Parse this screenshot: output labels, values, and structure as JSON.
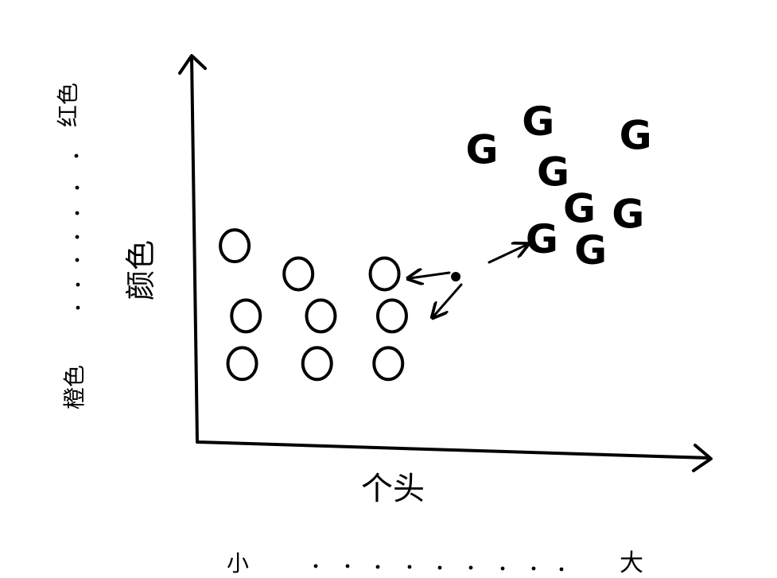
{
  "labels": {
    "y_axis": "颜色",
    "x_axis": "个头",
    "y_top": "红色",
    "y_bottom": "橙色",
    "x_left": "小",
    "x_right": "大"
  },
  "markers": {
    "cluster_o": "O",
    "cluster_g": "G"
  },
  "colors": {
    "ink": "#000000",
    "paper": "#ffffff"
  },
  "chart_data": {
    "type": "scatter",
    "xlabel": "个头",
    "ylabel": "颜色",
    "x_scale": [
      "小",
      "大"
    ],
    "y_scale": [
      "橙色",
      "红色"
    ],
    "series": [
      {
        "name": "O",
        "points": [
          {
            "x": 1,
            "y": 7
          },
          {
            "x": 2.7,
            "y": 6
          },
          {
            "x": 5,
            "y": 6
          },
          {
            "x": 1.3,
            "y": 4.5
          },
          {
            "x": 3.3,
            "y": 4.5
          },
          {
            "x": 5.2,
            "y": 4.5
          },
          {
            "x": 1.2,
            "y": 2.8
          },
          {
            "x": 3.2,
            "y": 2.8
          },
          {
            "x": 5.1,
            "y": 2.8
          }
        ]
      },
      {
        "name": "G",
        "points": [
          {
            "x": 7.6,
            "y": 10.4
          },
          {
            "x": 9.1,
            "y": 11.4
          },
          {
            "x": 11.7,
            "y": 10.9
          },
          {
            "x": 9.5,
            "y": 9.6
          },
          {
            "x": 10.2,
            "y": 8.3
          },
          {
            "x": 11.5,
            "y": 8.1
          },
          {
            "x": 9.2,
            "y": 7.2
          },
          {
            "x": 10.5,
            "y": 6.8
          }
        ]
      },
      {
        "name": "",
        "points": [
          {
            "x": 6.9,
            "y": 5.9
          }
        ]
      }
    ],
    "xlim": [
      0,
      13.5
    ],
    "ylim": [
      0,
      13.5
    ],
    "grid": false
  }
}
